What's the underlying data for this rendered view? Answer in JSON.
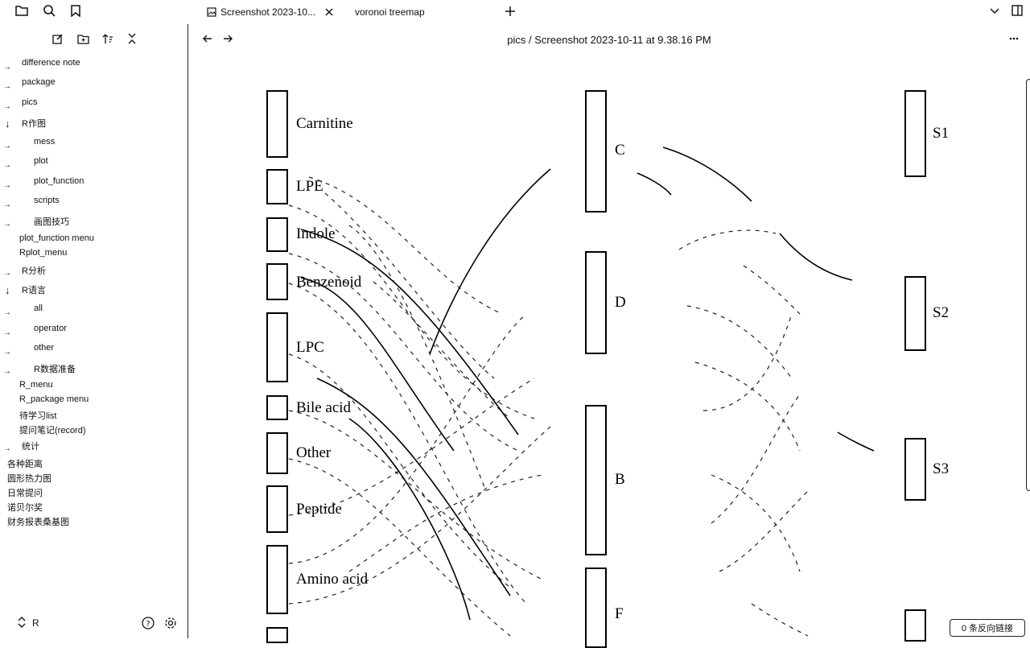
{
  "tabs": [
    {
      "label": "Screenshot 2023-10..."
    },
    {
      "label": "voronoi treemap"
    }
  ],
  "breadcrumb": {
    "folder": "pics",
    "separator": "/",
    "file": "Screenshot 2023-10-11 at 9.38.16 PM"
  },
  "sidebar": {
    "items": [
      {
        "label": "difference note",
        "arrow": "→"
      },
      {
        "label": "package",
        "arrow": "→"
      },
      {
        "label": "pics",
        "arrow": "→"
      },
      {
        "label": "R作图",
        "arrow": "↓"
      },
      {
        "label": "mess",
        "arrow": "→"
      },
      {
        "label": "plot",
        "arrow": "→"
      },
      {
        "label": "plot_function",
        "arrow": "→"
      },
      {
        "label": "scripts",
        "arrow": "→"
      },
      {
        "label": "画图技巧",
        "arrow": "→"
      },
      {
        "label": "plot_function menu",
        "arrow": ""
      },
      {
        "label": "Rplot_menu",
        "arrow": ""
      },
      {
        "label": "R分析",
        "arrow": "→"
      },
      {
        "label": "R语言",
        "arrow": "↓"
      },
      {
        "label": "all",
        "arrow": "→"
      },
      {
        "label": "operator",
        "arrow": "→"
      },
      {
        "label": "other",
        "arrow": "→"
      },
      {
        "label": "R数据准备",
        "arrow": "→"
      },
      {
        "label": "R_menu",
        "arrow": ""
      },
      {
        "label": "R_package menu",
        "arrow": ""
      },
      {
        "label": "待学习list",
        "arrow": ""
      },
      {
        "label": "提问笔记(record)",
        "arrow": ""
      },
      {
        "label": "统计",
        "arrow": "→"
      },
      {
        "label": "各种距离",
        "arrow": ""
      },
      {
        "label": "圆形热力图",
        "arrow": ""
      },
      {
        "label": "日常提问",
        "arrow": ""
      },
      {
        "label": "诺贝尔奖",
        "arrow": ""
      },
      {
        "label": "财务报表桑基图",
        "arrow": ""
      }
    ],
    "vault_name": "R"
  },
  "figure": {
    "left_nodes": [
      "Carnitine",
      "LPE",
      "Indole",
      "Benzenoid",
      "LPC",
      "Bile acid",
      "Other",
      "Peptide",
      "Amino acid"
    ],
    "middle_nodes": [
      "C",
      "D",
      "B",
      "F"
    ],
    "right_nodes": [
      "S1",
      "S2",
      "S3"
    ]
  },
  "status": {
    "backlinks": "0 条反向链接"
  }
}
